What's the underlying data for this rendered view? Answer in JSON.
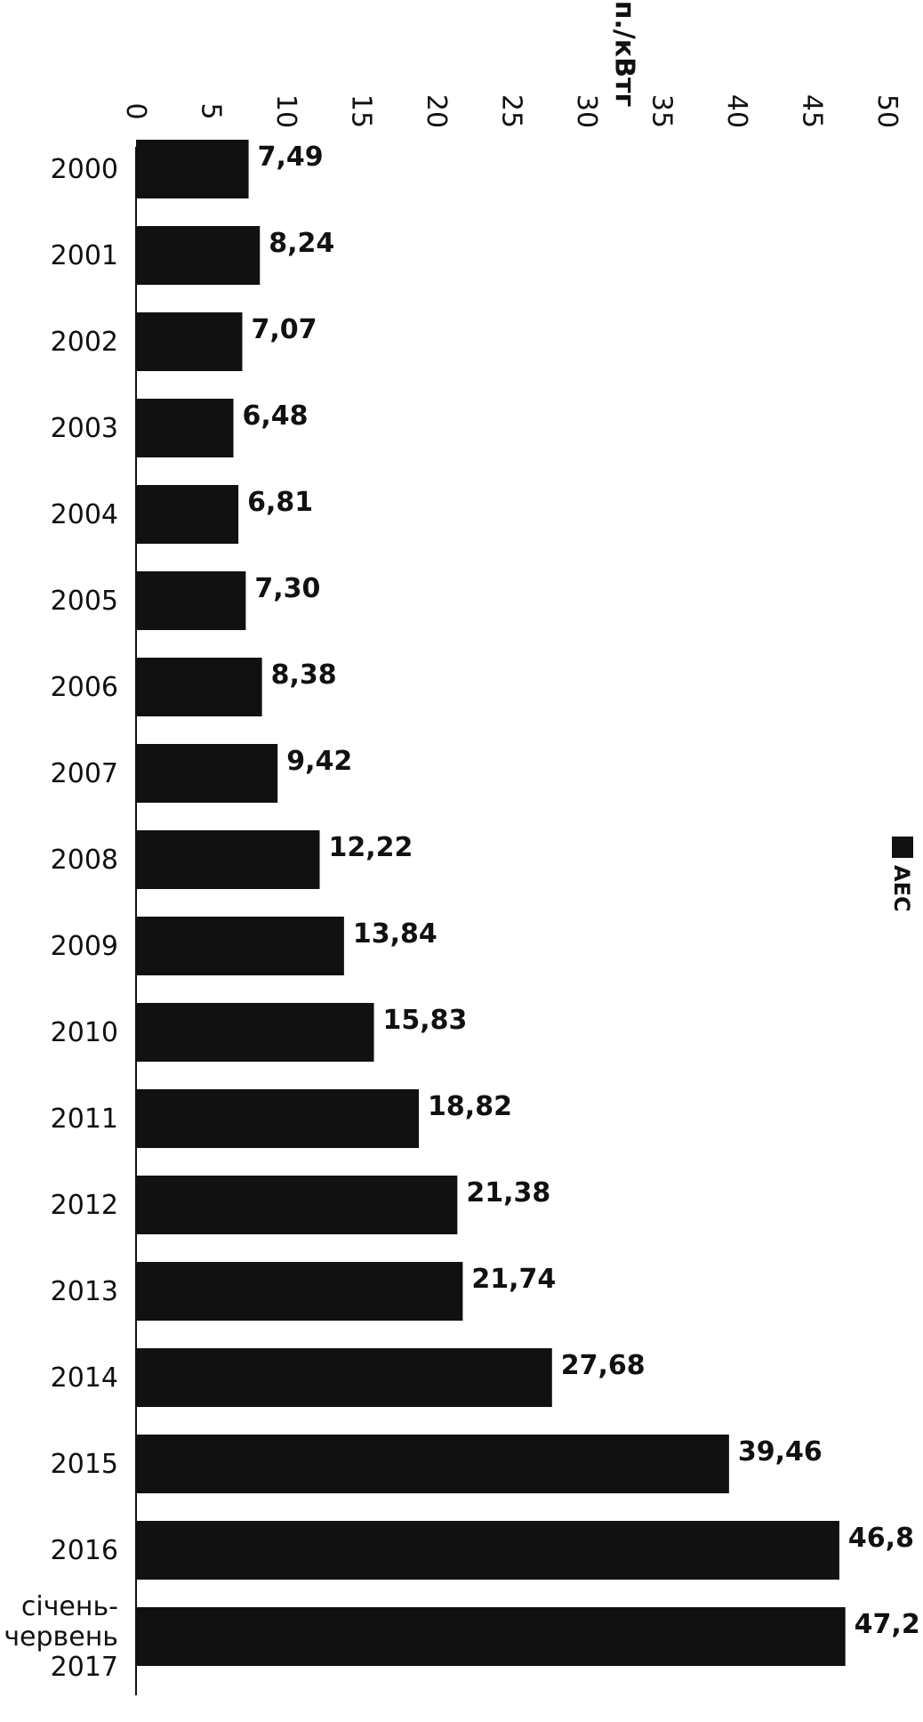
{
  "chart_data": {
    "type": "bar",
    "orientation": "horizontal",
    "image_rotation": "rotated 90 degrees clockwise (read sideways)",
    "unit_label": "коп./кВтг",
    "categories": [
      "2000",
      "2001",
      "2002",
      "2003",
      "2004",
      "2005",
      "2006",
      "2007",
      "2008",
      "2009",
      "2010",
      "2011",
      "2012",
      "2013",
      "2014",
      "2015",
      "2016",
      "січень-червень 2017"
    ],
    "category_label_lines": [
      [
        "2000"
      ],
      [
        "2001"
      ],
      [
        "2002"
      ],
      [
        "2003"
      ],
      [
        "2004"
      ],
      [
        "2005"
      ],
      [
        "2006"
      ],
      [
        "2007"
      ],
      [
        "2008"
      ],
      [
        "2009"
      ],
      [
        "2010"
      ],
      [
        "2011"
      ],
      [
        "2012"
      ],
      [
        "2013"
      ],
      [
        "2014"
      ],
      [
        "2015"
      ],
      [
        "2016"
      ],
      [
        "січень-",
        "червень",
        "2017"
      ]
    ],
    "series": [
      {
        "name": "АЕС",
        "values": [
          7.49,
          8.24,
          7.07,
          6.48,
          6.81,
          7.3,
          8.38,
          9.42,
          12.22,
          13.84,
          15.83,
          18.82,
          21.38,
          21.74,
          27.68,
          39.46,
          46.8,
          47.2
        ]
      }
    ],
    "data_labels": [
      "7,49",
      "8,24",
      "7,07",
      "6,48",
      "6,81",
      "7,30",
      "8,38",
      "9,42",
      "12,22",
      "13,84",
      "15,83",
      "18,82",
      "21,38",
      "21,74",
      "27,68",
      "39,46",
      "46,8",
      "47,2"
    ],
    "value_axis_ticks": [
      "0",
      "5",
      "10",
      "15",
      "20",
      "25",
      "30",
      "35",
      "40",
      "45",
      "50"
    ],
    "value_axis_range": [
      0,
      50
    ],
    "bar_color": "#111111",
    "grid": false,
    "legend": {
      "position": "bottom",
      "entries": [
        "АЕС"
      ]
    }
  }
}
